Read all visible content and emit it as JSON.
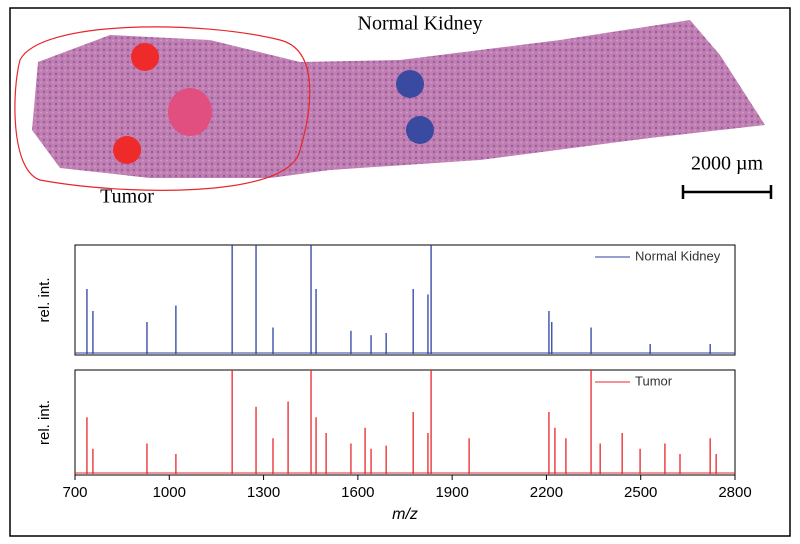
{
  "figure": {
    "normal_label": "Normal Kidney",
    "tumor_label": "Tumor",
    "scale_label": "2000 µm"
  },
  "chart_data": [
    {
      "type": "stem",
      "y_label": "rel. int.",
      "xlim": [
        700,
        2800
      ],
      "ylim": [
        0,
        100
      ],
      "legend": "upper right",
      "series": [
        {
          "name": "Normal Kidney",
          "color": "#2e40a0",
          "x": [
            738,
            757,
            929,
            1021,
            1200,
            1276,
            1330,
            1451,
            1467,
            1578,
            1642,
            1690,
            1776,
            1823,
            1833,
            2208,
            2217,
            2342,
            2530,
            2721
          ],
          "values": [
            60,
            40,
            30,
            45,
            100,
            100,
            25,
            100,
            60,
            22,
            18,
            20,
            60,
            55,
            100,
            40,
            30,
            25,
            10,
            10
          ]
        }
      ]
    },
    {
      "type": "stem",
      "y_label": "rel. int.",
      "x_label": "m/z",
      "xlim": [
        700,
        2800
      ],
      "ylim": [
        0,
        100
      ],
      "xticks": [
        700,
        1000,
        1300,
        1600,
        1900,
        2200,
        2500,
        2800
      ],
      "legend": "upper right",
      "series": [
        {
          "name": "Tumor",
          "color": "#e8262b",
          "x": [
            738,
            757,
            929,
            1021,
            1200,
            1276,
            1330,
            1378,
            1451,
            1467,
            1499,
            1578,
            1623,
            1642,
            1690,
            1776,
            1823,
            1833,
            1954,
            2208,
            2227,
            2262,
            2342,
            2371,
            2441,
            2498,
            2577,
            2625,
            2721,
            2740
          ],
          "values": [
            55,
            25,
            30,
            20,
            100,
            65,
            35,
            70,
            100,
            55,
            40,
            30,
            45,
            25,
            28,
            60,
            40,
            100,
            35,
            60,
            45,
            35,
            100,
            30,
            40,
            25,
            30,
            20,
            35,
            20
          ]
        }
      ]
    }
  ]
}
